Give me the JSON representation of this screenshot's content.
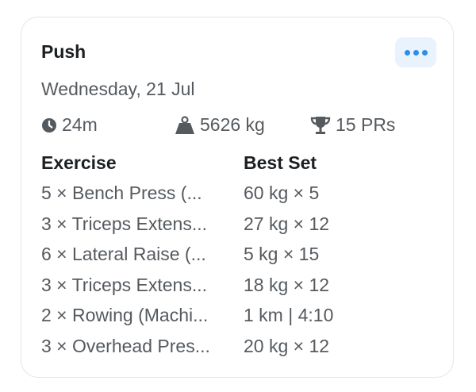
{
  "workout": {
    "title": "Push",
    "date": "Wednesday, 21 Jul",
    "duration": "24m",
    "volume": "5626 kg",
    "prs": "15 PRs"
  },
  "table": {
    "headers": [
      "Exercise",
      "Best Set"
    ],
    "rows": [
      [
        "5 × Bench Press (...",
        "60 kg × 5"
      ],
      [
        "3 × Triceps Extens...",
        "27 kg × 12"
      ],
      [
        "6 × Lateral Raise (...",
        "5 kg × 15"
      ],
      [
        "3 × Triceps Extens...",
        "18 kg × 12"
      ],
      [
        "2 × Rowing (Machi...",
        "1 km | 4:10"
      ],
      [
        "3 × Overhead Pres...",
        "20 kg × 12"
      ]
    ]
  },
  "icons": {
    "more": "ellipsis-icon",
    "duration": "clock-icon",
    "volume": "weight-icon",
    "prs": "trophy-icon"
  },
  "colors": {
    "accent": "#2b8fe4"
  }
}
